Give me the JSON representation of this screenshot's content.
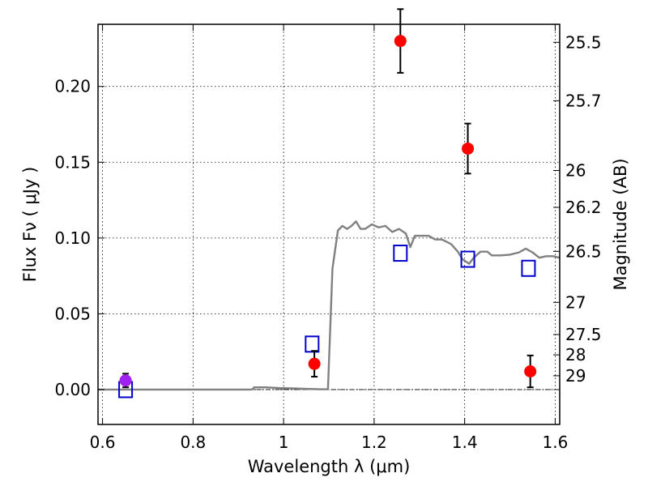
{
  "chart_data": {
    "type": "scatter",
    "xlabel": "Wavelength  λ (μm)",
    "ylabel": "Flux  Fν  ( μJy )",
    "ylabel_right": "Magnitude (AB)",
    "xlim": [
      0.59,
      1.61
    ],
    "ylim": [
      -0.023,
      0.241
    ],
    "grid": true,
    "x_ticks": [
      0.6,
      0.8,
      1.0,
      1.2,
      1.4,
      1.6
    ],
    "x_tick_labels": [
      "0.6",
      "0.8",
      "1",
      "1.2",
      "1.4",
      "1.6"
    ],
    "y_ticks": [
      0.0,
      0.05,
      0.1,
      0.15,
      0.2
    ],
    "y_tick_labels": [
      "0.00",
      "0.05",
      "0.10",
      "0.15",
      "0.20"
    ],
    "mag_ticks": [
      25.5,
      25.7,
      26,
      26.2,
      26.5,
      27,
      27.5,
      28,
      29
    ],
    "mag_tick_labels": [
      "25.5",
      "25.7",
      "26",
      "26.2",
      "26.5",
      "27",
      "27.5",
      "28",
      "29"
    ],
    "series": [
      {
        "kind": "line",
        "color": "#808080",
        "points": [
          [
            0.59,
            0.0
          ],
          [
            0.93,
            0.0
          ],
          [
            0.935,
            0.0015
          ],
          [
            0.96,
            0.0015
          ],
          [
            0.99,
            0.001
          ],
          [
            1.02,
            0.0008
          ],
          [
            1.05,
            0.0005
          ],
          [
            1.08,
            0.0002
          ],
          [
            1.098,
            0.0002
          ],
          [
            1.108,
            0.08
          ],
          [
            1.12,
            0.105
          ],
          [
            1.13,
            0.108
          ],
          [
            1.14,
            0.106
          ],
          [
            1.15,
            0.108
          ],
          [
            1.16,
            0.111
          ],
          [
            1.17,
            0.106
          ],
          [
            1.18,
            0.106
          ],
          [
            1.195,
            0.109
          ],
          [
            1.21,
            0.107
          ],
          [
            1.225,
            0.108
          ],
          [
            1.24,
            0.104
          ],
          [
            1.255,
            0.106
          ],
          [
            1.27,
            0.103
          ],
          [
            1.28,
            0.094
          ],
          [
            1.29,
            0.1015
          ],
          [
            1.31,
            0.1015
          ],
          [
            1.32,
            0.1015
          ],
          [
            1.335,
            0.099
          ],
          [
            1.35,
            0.099
          ],
          [
            1.37,
            0.096
          ],
          [
            1.385,
            0.091
          ],
          [
            1.395,
            0.086
          ],
          [
            1.41,
            0.083
          ],
          [
            1.42,
            0.087
          ],
          [
            1.435,
            0.091
          ],
          [
            1.45,
            0.091
          ],
          [
            1.46,
            0.0885
          ],
          [
            1.48,
            0.0885
          ],
          [
            1.5,
            0.089
          ],
          [
            1.52,
            0.0905
          ],
          [
            1.535,
            0.093
          ],
          [
            1.55,
            0.0905
          ],
          [
            1.565,
            0.087
          ],
          [
            1.58,
            0.088
          ],
          [
            1.595,
            0.088
          ],
          [
            1.61,
            0.087
          ]
        ]
      },
      {
        "kind": "open-square",
        "color": "#0000cc",
        "points": [
          [
            0.651,
            0.0
          ],
          [
            1.063,
            0.03
          ],
          [
            1.258,
            0.09
          ],
          [
            1.407,
            0.086
          ],
          [
            1.541,
            0.08
          ]
        ]
      },
      {
        "kind": "filled-circle-errorbar",
        "color": "#ff0000",
        "points": [
          [
            1.068,
            0.017,
            0.0085
          ],
          [
            1.258,
            0.23,
            0.021
          ],
          [
            1.407,
            0.159,
            0.0165
          ],
          [
            1.545,
            0.012,
            0.0105
          ]
        ]
      },
      {
        "kind": "filled-circle-errorbar",
        "color": "#a020f0",
        "points": [
          [
            0.651,
            0.006,
            0.0045
          ]
        ]
      }
    ]
  }
}
